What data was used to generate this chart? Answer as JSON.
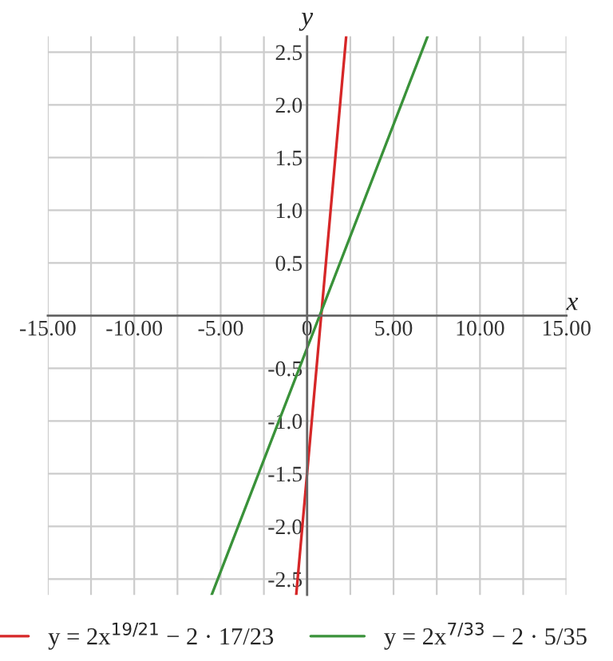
{
  "chart_data": {
    "type": "line",
    "xlabel": "x",
    "ylabel": "y",
    "series": [
      {
        "name": "y = 2x$^{19/21}$ − 2 · 17/23",
        "color": "#d62728",
        "x": [
          -0.63,
          2.26
        ],
        "values": [
          -2.65,
          2.65
        ]
      },
      {
        "name": "y = 2x$^{7/33}$ − 2 · 5/35",
        "color": "#3a923a",
        "x": [
          -5.52,
          6.97
        ],
        "values": [
          -2.65,
          2.65
        ]
      }
    ],
    "xlim": [
      -15,
      15
    ],
    "ylim": [
      -2.65,
      2.65
    ],
    "xticks": [
      {
        "value": -15,
        "label": "-15.00"
      },
      {
        "value": -12.5,
        "label": null
      },
      {
        "value": -10,
        "label": "-10.00"
      },
      {
        "value": -7.5,
        "label": null
      },
      {
        "value": -5,
        "label": "-5.00"
      },
      {
        "value": -2.5,
        "label": null
      },
      0,
      {
        "value": 2.5,
        "label": null
      },
      {
        "value": 5,
        "label": "5.00"
      },
      {
        "value": 7.5,
        "label": null
      },
      {
        "value": 10,
        "label": "10.00"
      },
      {
        "value": 12.5,
        "label": null
      },
      {
        "value": 15,
        "label": "15.00"
      }
    ],
    "yticks": [
      {
        "value": -2.5,
        "label": "-2.5"
      },
      {
        "value": -2,
        "label": "-2.0"
      },
      {
        "value": -1.5,
        "label": "-1.5"
      },
      {
        "value": -1,
        "label": "-1.0"
      },
      {
        "value": -0.5,
        "label": "-0.5"
      },
      {
        "value": 0.5,
        "label": "0.5"
      },
      {
        "value": 1,
        "label": "1.0"
      },
      {
        "value": 1.5,
        "label": "1.5"
      },
      {
        "value": 2,
        "label": "2.0"
      },
      {
        "value": 2.5,
        "label": "2.5"
      }
    ],
    "grid": true,
    "legend": "bottom",
    "marker": "none",
    "line_style": "solid"
  }
}
